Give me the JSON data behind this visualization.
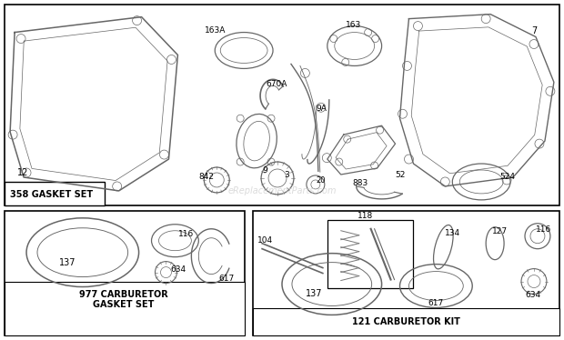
{
  "bg_color": "#ffffff",
  "part_color": "#666666",
  "watermark": "eReplacementParts.com",
  "section_358_label": "358 GASKET SET",
  "section_977_label": "977 CARBURETOR\nGASKET SET",
  "section_121_label": "121 CARBURETOR KIT"
}
